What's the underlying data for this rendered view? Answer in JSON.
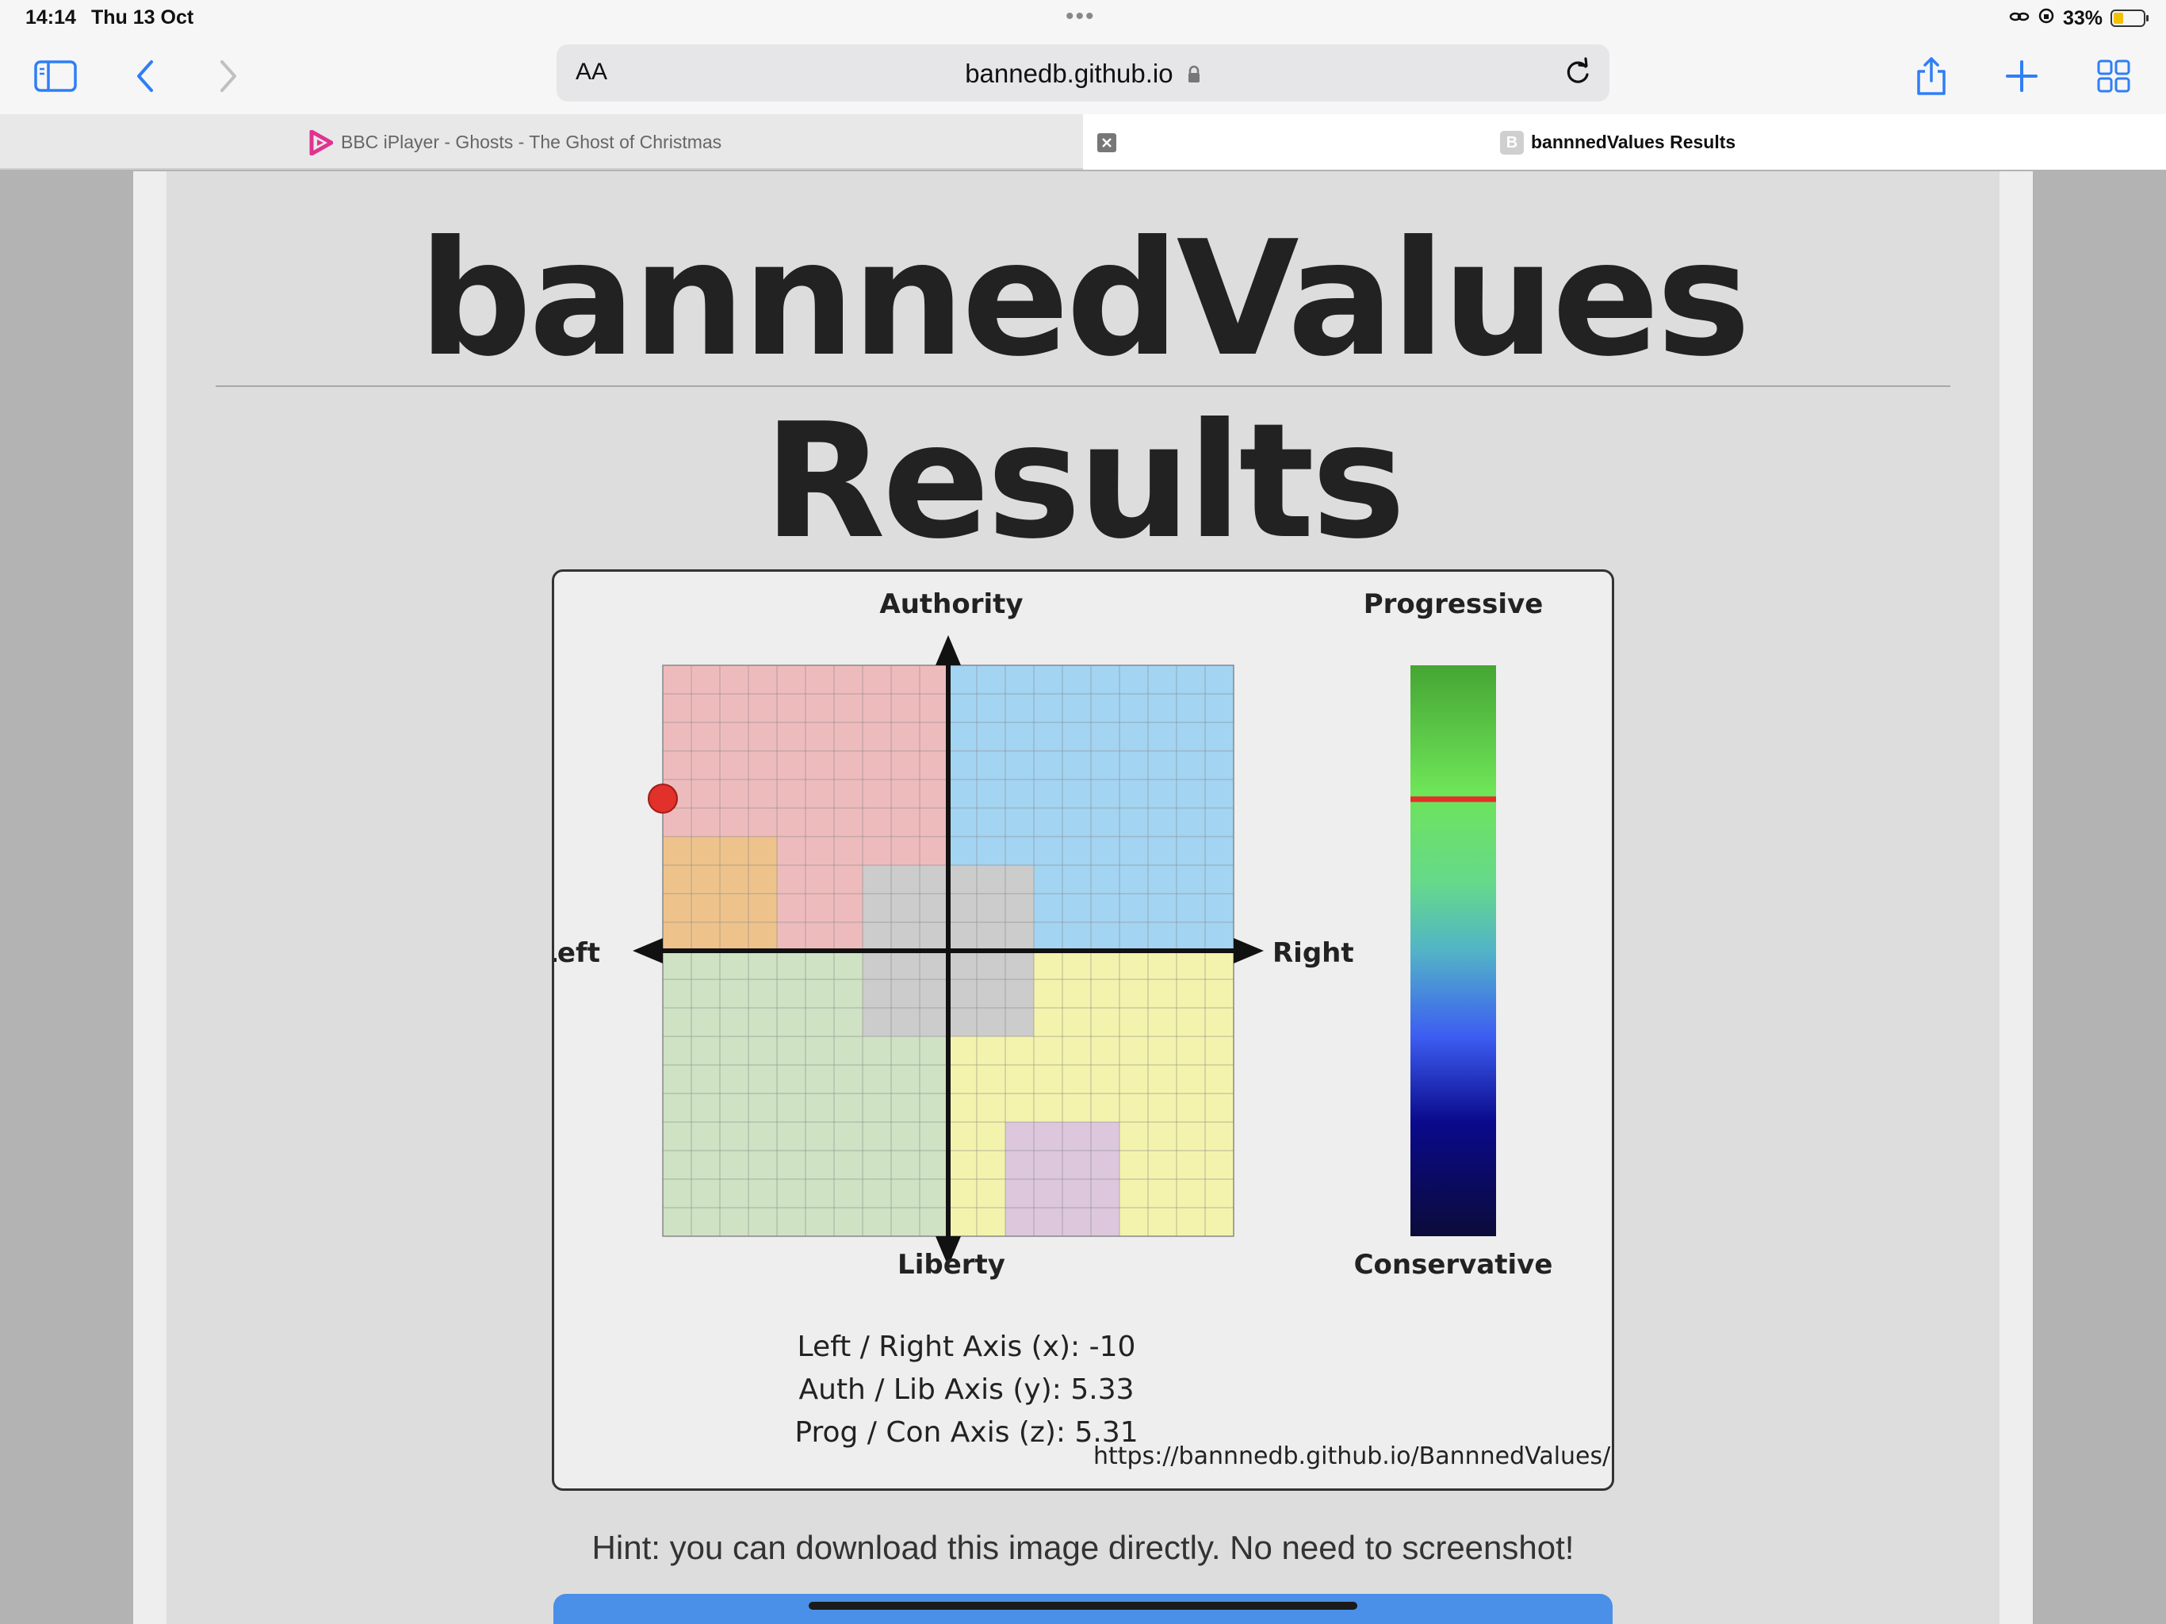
{
  "status_bar": {
    "time": "14:14",
    "date": "Thu 13 Oct",
    "battery": "33%",
    "battery_level": 0.33
  },
  "toolbar": {
    "url_text_size": "AA",
    "url": "bannedb.github.io"
  },
  "tabs": [
    {
      "title": "BBC iPlayer - Ghosts - The Ghost of Christmas",
      "active": false
    },
    {
      "title": "bannnedValues Results",
      "favicon_letter": "B",
      "active": true
    }
  ],
  "page": {
    "title_line1": "bannnedValues",
    "title_line2": "Results",
    "hint": "Hint: you can download this image directly. No need to screenshot!"
  },
  "chart": {
    "top_label": "Authority",
    "bottom_label": "Liberty",
    "left_label": "Left",
    "right_label": "Right",
    "bar_top_label": "Progressive",
    "bar_bottom_label": "Conservative",
    "scores": [
      "Left / Right Axis (x): -10",
      "Auth / Lib Axis (y): 5.33",
      "Prog / Con Axis (z): 5.31"
    ],
    "source_url": "https://bannnedb.github.io/BannnedValues/",
    "colors": {
      "auth_left": "#eebbbc",
      "auth_right": "#a3d4f2",
      "lib_left": "#cfe2c4",
      "lib_right": "#f4f3ad",
      "orange_zone": "#eec28b",
      "center_zone": "#cccccc",
      "purple_zone": "#dcc7dc",
      "marker": "#e2302a"
    }
  },
  "chart_data": {
    "type": "scatter",
    "title": "",
    "xlabel": "Left / Right",
    "ylabel": "Authority / Liberty",
    "xlim": [
      -10,
      10
    ],
    "ylim": [
      -10,
      10
    ],
    "points": [
      {
        "x": -10,
        "y": 5.33
      }
    ],
    "z_axis": {
      "label_top": "Progressive",
      "label_bottom": "Conservative",
      "range": [
        -10,
        10
      ],
      "value": 5.31
    },
    "grid": true
  }
}
